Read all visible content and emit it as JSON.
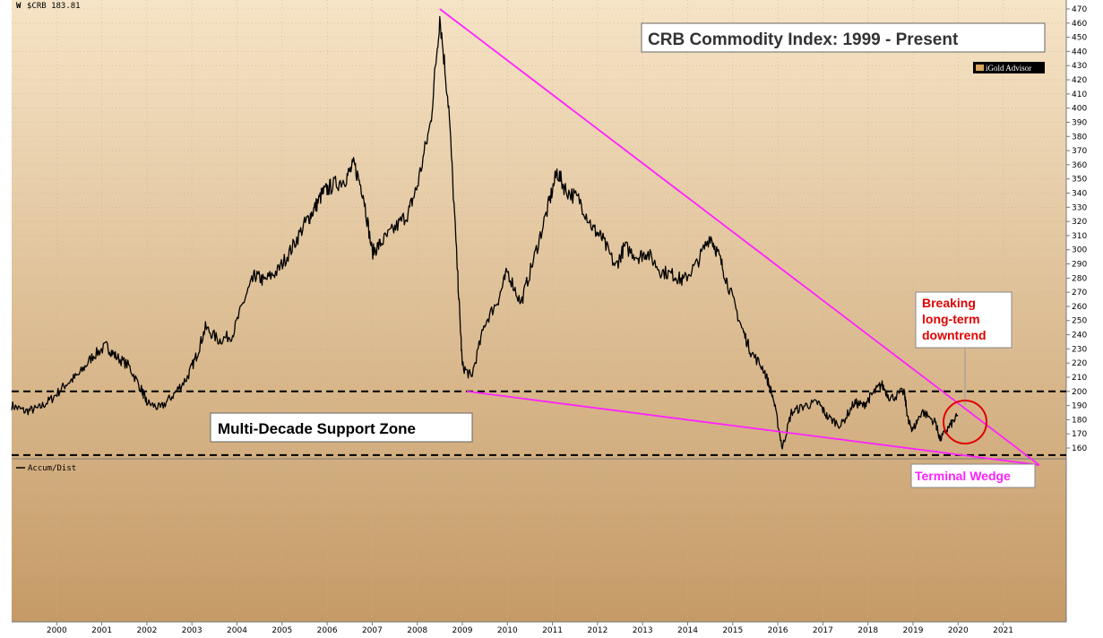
{
  "header": {
    "symbol_label": "$CRB 183.81",
    "indicator_label": "Accum/Dist"
  },
  "annotations": {
    "title": "CRB Commodity Index: 1999 - Present",
    "brand": "iGold Advisor",
    "support_label": "Multi-Decade Support Zone",
    "breakout_label": "Breaking long-term downtrend",
    "wedge_label": "Terminal Wedge"
  },
  "colors": {
    "background_top": "#f6e4c6",
    "background_bottom": "#c59a66",
    "price_line": "#000000",
    "trendline": "#ff22ff",
    "breakout_text": "#e00000",
    "circle": "#e00000",
    "support_line": "#000000"
  },
  "chart_data": {
    "type": "line",
    "title": "CRB Commodity Index: 1999 - Present",
    "xlabel": "",
    "ylabel": "",
    "x_ticks": [
      "2000",
      "2001",
      "2002",
      "2003",
      "2004",
      "2005",
      "2006",
      "2007",
      "2008",
      "2009",
      "2010",
      "2011",
      "2012",
      "2013",
      "2014",
      "2015",
      "2016",
      "2017",
      "2018",
      "2019",
      "2020",
      "2021"
    ],
    "y_ticks": [
      160,
      170,
      180,
      190,
      200,
      210,
      220,
      230,
      240,
      250,
      260,
      270,
      280,
      290,
      300,
      310,
      320,
      330,
      340,
      350,
      360,
      370,
      380,
      390,
      400,
      410,
      420,
      430,
      440,
      450,
      460,
      470
    ],
    "ylim": [
      153,
      475
    ],
    "xlim": [
      1999.0,
      2022.4
    ],
    "grid": true,
    "series": [
      {
        "x": [
          1999.0,
          1999.3,
          1999.6,
          1999.9,
          2000.2,
          2000.5,
          2000.8,
          2001.1,
          2001.3,
          2001.6,
          2001.9,
          2002.0,
          2002.3,
          2002.6,
          2002.9,
          2003.1,
          2003.3,
          2003.6,
          2003.9,
          2004.2,
          2004.4,
          2004.6,
          2004.9,
          2005.2,
          2005.5,
          2005.7,
          2005.9,
          2006.1,
          2006.4,
          2006.6,
          2006.8,
          2007.0,
          2007.2,
          2007.5,
          2007.8,
          2008.0,
          2008.3,
          2008.5,
          2008.7,
          2008.9,
          2009.0,
          2009.2,
          2009.5,
          2009.8,
          2010.0,
          2010.3,
          2010.6,
          2010.9,
          2011.1,
          2011.3,
          2011.6,
          2011.9,
          2012.1,
          2012.4,
          2012.6,
          2012.9,
          2013.1,
          2013.4,
          2013.7,
          2013.9,
          2014.2,
          2014.5,
          2014.7,
          2014.9,
          2015.2,
          2015.4,
          2015.7,
          2015.9,
          2016.1,
          2016.3,
          2016.6,
          2016.9,
          2017.1,
          2017.4,
          2017.7,
          2017.9,
          2018.1,
          2018.3,
          2018.5,
          2018.8,
          2018.9,
          2019.0,
          2019.2,
          2019.5,
          2019.6,
          2019.8,
          2020.0
        ],
        "y": [
          190,
          186,
          188,
          195,
          205,
          212,
          225,
          232,
          225,
          218,
          200,
          192,
          188,
          198,
          210,
          225,
          245,
          236,
          240,
          268,
          282,
          278,
          285,
          300,
          318,
          328,
          340,
          345,
          350,
          360,
          340,
          298,
          305,
          315,
          326,
          345,
          390,
          465,
          400,
          280,
          218,
          210,
          248,
          265,
          285,
          262,
          295,
          330,
          355,
          342,
          335,
          315,
          308,
          288,
          302,
          295,
          298,
          285,
          282,
          278,
          290,
          310,
          295,
          275,
          245,
          228,
          215,
          195,
          160,
          185,
          190,
          192,
          182,
          176,
          192,
          190,
          198,
          205,
          195,
          200,
          178,
          173,
          186,
          178,
          166,
          175,
          183
        ]
      }
    ],
    "support_zone": [
      200,
      155
    ],
    "trendlines": [
      {
        "name": "",
        "x": [
          2008.5,
          2021.8
        ],
        "y": [
          470,
          148
        ]
      },
      {
        "name": "",
        "x": [
          2009.1,
          2021.8
        ],
        "y": [
          200,
          148
        ]
      }
    ]
  }
}
